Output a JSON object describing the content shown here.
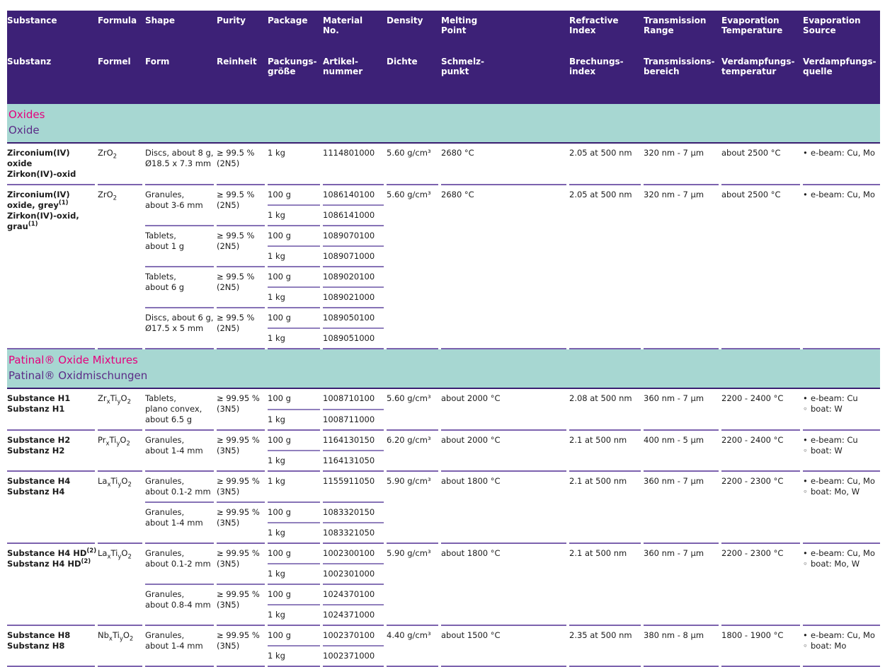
{
  "header": {
    "columns": [
      {
        "key": "substance",
        "en": [
          "Substance"
        ],
        "de": [
          "Substanz"
        ]
      },
      {
        "key": "formula",
        "en": [
          "Formula"
        ],
        "de": [
          "Formel"
        ]
      },
      {
        "key": "shape",
        "en": [
          "Shape"
        ],
        "de": [
          "Form"
        ]
      },
      {
        "key": "purity",
        "en": [
          "Purity"
        ],
        "de": [
          "Reinheit"
        ]
      },
      {
        "key": "package",
        "en": [
          "Package"
        ],
        "de": [
          "Packungs-",
          "größe"
        ]
      },
      {
        "key": "material-no",
        "en": [
          "Material",
          "No."
        ],
        "de": [
          "Artikel-",
          "nummer"
        ]
      },
      {
        "key": "density",
        "en": [
          "Density"
        ],
        "de": [
          "Dichte"
        ]
      },
      {
        "key": "melting-point",
        "en": [
          "Melting",
          "Point"
        ],
        "de": [
          "Schmelz-",
          "punkt"
        ]
      },
      {
        "key": "refractive-index",
        "en": [
          "Refractive",
          "Index"
        ],
        "de": [
          "Brechungs-",
          "index"
        ]
      },
      {
        "key": "transmission-range",
        "en": [
          "Transmission",
          "Range"
        ],
        "de": [
          "Transmissions-",
          "bereich"
        ]
      },
      {
        "key": "evaporation-temperature",
        "en": [
          "Evaporation",
          "Temperature"
        ],
        "de": [
          "Verdampfungs-",
          "temperatur"
        ]
      },
      {
        "key": "evaporation-source",
        "en": [
          "Evaporation",
          "Source"
        ],
        "de": [
          "Verdampfungs-",
          "quelle"
        ]
      }
    ]
  },
  "sections": [
    {
      "title_en": "Oxides",
      "title_de": "Oxide",
      "rows": [
        {
          "name_lines": [
            [
              {
                "t": "Zirconium(IV)"
              }
            ],
            [
              {
                "t": "oxide"
              }
            ],
            [
              {
                "t": "Zirkon(IV)-oxid"
              }
            ]
          ],
          "formula": [
            {
              "t": "ZrO",
              "sub": "2"
            }
          ],
          "groups": [
            {
              "shape": [
                "Discs, about 8 g,",
                "Ø18.5 x 7.3 mm"
              ],
              "purity": [
                "≥ 99.5 %",
                "(2N5)"
              ],
              "packs": [
                {
                  "size": "1 kg",
                  "mat": "1114801000"
                }
              ]
            }
          ],
          "density": "5.60 g/cm³",
          "melting": "2680 °C",
          "refractive": "2.05 at 500 nm",
          "transmission": "320 nm - 7 µm",
          "evap_temp": "about 2500 °C",
          "sources": [
            {
              "m": "•",
              "t": "e-beam: Cu, Mo"
            }
          ]
        },
        {
          "name_lines": [
            [
              {
                "t": "Zirconium(IV)"
              }
            ],
            [
              {
                "t": "oxide, grey"
              },
              {
                "t": "(1)",
                "sup": true
              }
            ],
            [
              {
                "t": "Zirkon(IV)-oxid,"
              }
            ],
            [
              {
                "t": "grau"
              },
              {
                "t": "(1)",
                "sup": true
              }
            ]
          ],
          "formula": [
            {
              "t": "ZrO",
              "sub": "2"
            }
          ],
          "groups": [
            {
              "shape": [
                "Granules,",
                "about 3-6 mm"
              ],
              "purity": [
                "≥ 99.5 %",
                "(2N5)"
              ],
              "packs": [
                {
                  "size": "100 g",
                  "mat": "1086140100"
                },
                {
                  "size": "1 kg",
                  "mat": "1086141000"
                }
              ]
            },
            {
              "shape": [
                "Tablets,",
                "about 1 g"
              ],
              "purity": [
                "≥ 99.5 %",
                "(2N5)"
              ],
              "packs": [
                {
                  "size": "100 g",
                  "mat": "1089070100"
                },
                {
                  "size": "1 kg",
                  "mat": "1089071000"
                }
              ]
            },
            {
              "shape": [
                "Tablets,",
                "about 6 g"
              ],
              "purity": [
                "≥ 99.5 %",
                "(2N5)"
              ],
              "packs": [
                {
                  "size": "100 g",
                  "mat": "1089020100"
                },
                {
                  "size": "1 kg",
                  "mat": "1089021000"
                }
              ]
            },
            {
              "shape": [
                "Discs, about 6 g,",
                "Ø17.5 x 5 mm"
              ],
              "purity": [
                "≥ 99.5 %",
                "(2N5)"
              ],
              "packs": [
                {
                  "size": "100 g",
                  "mat": "1089050100"
                },
                {
                  "size": "1 kg",
                  "mat": "1089051000"
                }
              ]
            }
          ],
          "density": "5.60 g/cm³",
          "melting": "2680 °C",
          "refractive": "2.05 at 500 nm",
          "transmission": "320 nm - 7 µm",
          "evap_temp": "about 2500 °C",
          "sources": [
            {
              "m": "•",
              "t": "e-beam: Cu, Mo"
            }
          ]
        }
      ]
    },
    {
      "title_en": "Patinal® Oxide Mixtures",
      "title_de": "Patinal® Oxidmischungen",
      "rows": [
        {
          "name_lines": [
            [
              {
                "t": "Substance H1"
              }
            ],
            [
              {
                "t": "Substanz H1"
              }
            ]
          ],
          "formula": [
            {
              "t": "Zr",
              "sub": "x"
            },
            {
              "t": "Ti",
              "sub": "y"
            },
            {
              "t": "O",
              "sub": "2"
            }
          ],
          "groups": [
            {
              "shape": [
                "Tablets,",
                "plano convex,",
                "about 6.5 g"
              ],
              "purity": [
                "≥ 99.95 %",
                "(3N5)"
              ],
              "packs": [
                {
                  "size": "100 g",
                  "mat": "1008710100"
                },
                {
                  "size": "1 kg",
                  "mat": "1008711000"
                }
              ]
            }
          ],
          "density": "5.60 g/cm³",
          "melting": "about 2000 °C",
          "refractive": "2.08 at 500 nm",
          "transmission": "360 nm - 7 µm",
          "evap_temp": "2200 - 2400 °C",
          "sources": [
            {
              "m": "•",
              "t": "e-beam: Cu"
            },
            {
              "m": "◦",
              "t": "boat: W"
            }
          ]
        },
        {
          "name_lines": [
            [
              {
                "t": "Substance H2"
              }
            ],
            [
              {
                "t": "Substanz H2"
              }
            ]
          ],
          "formula": [
            {
              "t": "Pr",
              "sub": "x"
            },
            {
              "t": "Ti",
              "sub": "y"
            },
            {
              "t": "O",
              "sub": "2"
            }
          ],
          "groups": [
            {
              "shape": [
                "Granules,",
                "about 1-4 mm"
              ],
              "purity": [
                "≥ 99.95 %",
                "(3N5)"
              ],
              "packs": [
                {
                  "size": "100 g",
                  "mat": "1164130150"
                },
                {
                  "size": "1 kg",
                  "mat": "1164131050"
                }
              ]
            }
          ],
          "density": "6.20 g/cm³",
          "melting": "about 2000 °C",
          "refractive": "2.1 at 500 nm",
          "transmission": "400 nm - 5 µm",
          "evap_temp": "2200 - 2400 °C",
          "sources": [
            {
              "m": "•",
              "t": "e-beam: Cu"
            },
            {
              "m": "◦",
              "t": "boat: W"
            }
          ]
        },
        {
          "name_lines": [
            [
              {
                "t": "Substance H4"
              }
            ],
            [
              {
                "t": "Substanz H4"
              }
            ]
          ],
          "formula": [
            {
              "t": "La",
              "sub": "x"
            },
            {
              "t": "Ti",
              "sub": "y"
            },
            {
              "t": "O",
              "sub": "2"
            }
          ],
          "groups": [
            {
              "shape": [
                "Granules,",
                "about 0.1-2 mm"
              ],
              "purity": [
                "≥ 99.95 %",
                "(3N5)"
              ],
              "packs": [
                {
                  "size": "1 kg",
                  "mat": "1155911050"
                }
              ]
            },
            {
              "shape": [
                "Granules,",
                "about 1-4 mm"
              ],
              "purity": [
                "≥ 99.95 %",
                "(3N5)"
              ],
              "packs": [
                {
                  "size": "100 g",
                  "mat": "1083320150"
                },
                {
                  "size": "1 kg",
                  "mat": "1083321050"
                }
              ]
            }
          ],
          "density": "5.90 g/cm³",
          "melting": "about 1800 °C",
          "refractive": "2.1 at 500 nm",
          "transmission": "360 nm - 7 µm",
          "evap_temp": "2200 - 2300 °C",
          "sources": [
            {
              "m": "•",
              "t": "e-beam: Cu, Mo"
            },
            {
              "m": "◦",
              "t": "boat: Mo, W"
            }
          ]
        },
        {
          "name_lines": [
            [
              {
                "t": "Substance H4 HD"
              },
              {
                "t": "(2)",
                "sup": true
              }
            ],
            [
              {
                "t": "Substanz H4 HD"
              },
              {
                "t": "(2)",
                "sup": true
              }
            ]
          ],
          "formula": [
            {
              "t": "La",
              "sub": "x"
            },
            {
              "t": "Ti",
              "sub": "y"
            },
            {
              "t": "O",
              "sub": "2"
            }
          ],
          "groups": [
            {
              "shape": [
                "Granules,",
                "about 0.1-2 mm"
              ],
              "purity": [
                "≥ 99.95 %",
                "(3N5)"
              ],
              "packs": [
                {
                  "size": "100 g",
                  "mat": "1002300100"
                },
                {
                  "size": "1 kg",
                  "mat": "1002301000"
                }
              ]
            },
            {
              "shape": [
                "Granules,",
                "about 0.8-4 mm"
              ],
              "purity": [
                "≥ 99.95 %",
                "(3N5)"
              ],
              "packs": [
                {
                  "size": "100 g",
                  "mat": "1024370100"
                },
                {
                  "size": "1 kg",
                  "mat": "1024371000"
                }
              ]
            }
          ],
          "density": "5.90 g/cm³",
          "melting": "about 1800 °C",
          "refractive": "2.1 at 500 nm",
          "transmission": "360 nm - 7 µm",
          "evap_temp": "2200 - 2300 °C",
          "sources": [
            {
              "m": "•",
              "t": "e-beam: Cu, Mo"
            },
            {
              "m": "◦",
              "t": "boat: Mo, W"
            }
          ]
        },
        {
          "name_lines": [
            [
              {
                "t": "Substance H8"
              }
            ],
            [
              {
                "t": "Substanz H8"
              }
            ]
          ],
          "formula": [
            {
              "t": "Nb",
              "sub": "x"
            },
            {
              "t": "Ti",
              "sub": "y"
            },
            {
              "t": "O",
              "sub": "2"
            }
          ],
          "groups": [
            {
              "shape": [
                "Granules,",
                "about 1-4 mm"
              ],
              "purity": [
                "≥ 99.95 %",
                "(3N5)"
              ],
              "packs": [
                {
                  "size": "100 g",
                  "mat": "1002370100"
                },
                {
                  "size": "1 kg",
                  "mat": "1002371000"
                }
              ]
            }
          ],
          "density": "4.40 g/cm³",
          "melting": "about 1500 °C",
          "refractive": "2.35 at 500 nm",
          "transmission": "380 nm - 8 µm",
          "evap_temp": "1800 - 1900 °C",
          "sources": [
            {
              "m": "•",
              "t": "e-beam: Cu, Mo"
            },
            {
              "m": "◦",
              "t": "boat: Mo"
            }
          ]
        }
      ]
    }
  ],
  "colors": {
    "header_band": "#3d2177",
    "section_band": "#a7d7d2",
    "section_title_pink": "#e5007d",
    "section_subtitle_purple": "#5b2c87",
    "separator_line": "#7c62ae",
    "dark_rule": "#3a1f71",
    "text": "#1c1c1c"
  }
}
